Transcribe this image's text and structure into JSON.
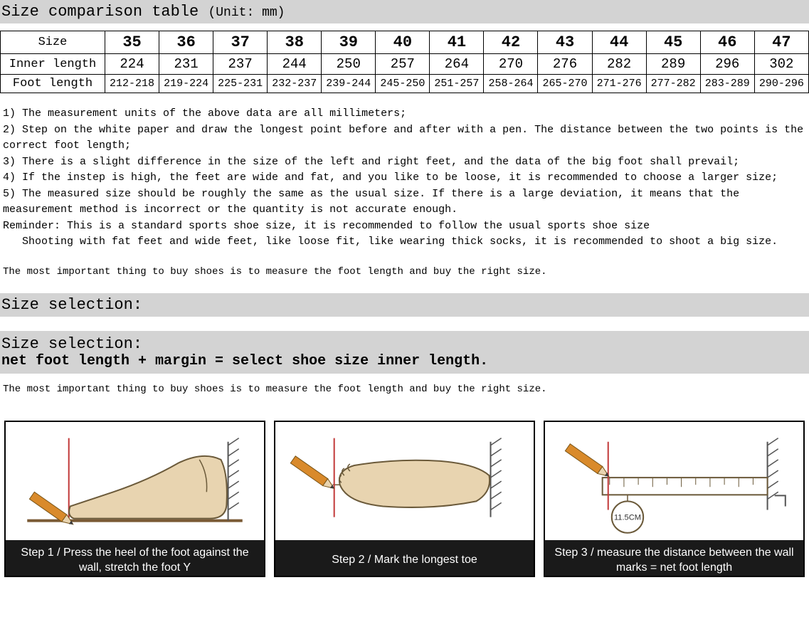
{
  "header": {
    "title": "Size comparison table",
    "unit_label": "(Unit: mm)"
  },
  "table": {
    "row_labels": [
      "Size",
      "Inner length",
      "Foot length"
    ],
    "sizes": [
      "35",
      "36",
      "37",
      "38",
      "39",
      "40",
      "41",
      "42",
      "43",
      "44",
      "45",
      "46",
      "47"
    ],
    "inner_length": [
      "224",
      "231",
      "237",
      "244",
      "250",
      "257",
      "264",
      "270",
      "276",
      "282",
      "289",
      "296",
      "302"
    ],
    "foot_length": [
      "212-218",
      "219-224",
      "225-231",
      "232-237",
      "239-244",
      "245-250",
      "251-257",
      "258-264",
      "265-270",
      "271-276",
      "277-282",
      "283-289",
      "290-296"
    ]
  },
  "notes": {
    "lines": [
      "1) The measurement units of the above data are all millimeters;",
      "2) Step on the white paper and draw the longest point before and after with a pen. The distance between the two points is the correct foot length;",
      "3) There is a slight difference in the size of the left and right feet, and the data of the big foot shall prevail;",
      "4) If the instep is high, the feet are wide and fat, and you like to be loose, it is recommended to choose a larger size;",
      "5) The measured size should be roughly the same as the usual size. If there is a large deviation, it means that the measurement method is incorrect or the quantity is not accurate enough.",
      "Reminder: This is a standard sports shoe size, it is recommended to follow the usual sports shoe size",
      "   Shooting with fat feet and wide feet, like loose fit, like wearing thick socks, it is recommended to shoot a big size."
    ],
    "important": "The most important thing to buy shoes is to measure the foot length and buy the right size."
  },
  "section": {
    "title": "Size selection:"
  },
  "formula": {
    "line1": "Size selection:",
    "line2": "net foot length + margin = select shoe size inner length."
  },
  "steps": {
    "items": [
      {
        "caption": "Step 1 / Press the heel of the foot against the wall, stretch the foot Y"
      },
      {
        "caption": "Step 2 / Mark the longest toe"
      },
      {
        "caption": "Step 3 / measure the distance between the wall marks = net foot length"
      }
    ],
    "ruler_label": "11.5CM",
    "colors": {
      "foot_fill": "#e8d4b0",
      "foot_stroke": "#6b5a3a",
      "pencil_body": "#d98a2b",
      "pencil_tip": "#3a3a3a",
      "wall_hatch": "#555555",
      "guide_line": "#c23a3a",
      "floor": "#7a5a35",
      "ruler": "#d9d0c0"
    }
  }
}
